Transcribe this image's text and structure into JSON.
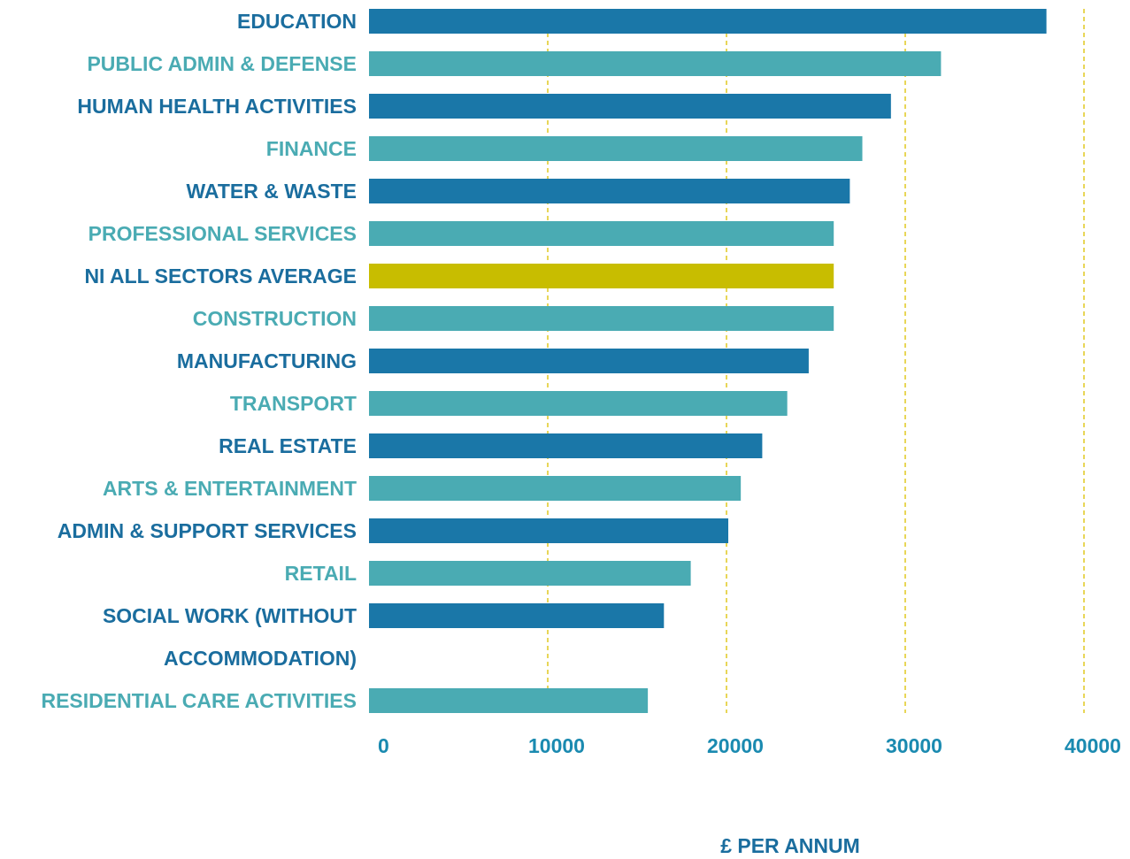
{
  "chart_data": {
    "type": "barh",
    "categories": [
      "EDUCATION",
      "PUBLIC ADMIN & DEFENSE",
      "HUMAN HEALTH ACTIVITIES",
      "FINANCE",
      "WATER & WASTE",
      "PROFESSIONAL SERVICES",
      "NI ALL SECTORS AVERAGE",
      "CONSTRUCTION",
      "MANUFACTURING",
      "TRANSPORT",
      "REAL ESTATE",
      "ARTS & ENTERTAINMENT",
      "ADMIN & SUPPORT SERVICES",
      "RETAIL",
      "SOCIAL WORK (WITHOUT ACCOMMODATION)",
      "RESIDENTIAL CARE ACTIVITIES"
    ],
    "values": [
      37900,
      32000,
      29200,
      27600,
      26900,
      26000,
      26000,
      26000,
      24600,
      23400,
      22000,
      20800,
      20100,
      18000,
      16500,
      15600
    ],
    "colors": [
      "#1a77a8",
      "#4aabb3",
      "#1a77a8",
      "#4aabb3",
      "#1a77a8",
      "#4aabb3",
      "#c8bd00",
      "#4aabb3",
      "#1a77a8",
      "#4aabb3",
      "#1a77a8",
      "#4aabb3",
      "#1a77a8",
      "#4aabb3",
      "#1a77a8",
      "#4aabb3"
    ],
    "label_colors": [
      "#1a6d9e",
      "#4aabb3",
      "#1a6d9e",
      "#4aabb3",
      "#1a6d9e",
      "#4aabb3",
      "#1a6d9e",
      "#4aabb3",
      "#1a6d9e",
      "#4aabb3",
      "#1a6d9e",
      "#4aabb3",
      "#1a6d9e",
      "#4aabb3",
      "#1a6d9e",
      "#4aabb3"
    ],
    "xlabel": "£ PER ANNUM",
    "xlim": [
      0,
      40000
    ],
    "xticks": [
      0,
      10000,
      20000,
      30000,
      40000
    ],
    "grid": true,
    "grid_color": "#e0c820",
    "tick_color": "#1a8ab0"
  }
}
